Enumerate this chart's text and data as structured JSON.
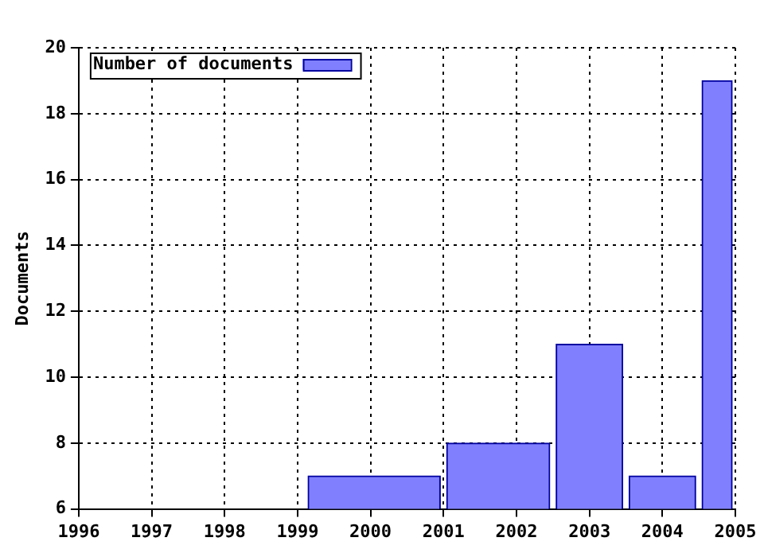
{
  "chart_data": {
    "type": "histogram",
    "ylabel": "Documents",
    "bins": [
      1999.1,
      2001.0,
      2002.5,
      2003.5,
      2004.5,
      2005
    ],
    "series": [
      {
        "name": "Number of documents",
        "color": "#8080ff",
        "values": [
          7,
          8,
          11,
          7,
          19
        ]
      }
    ],
    "xlim": [
      1996,
      2005
    ],
    "xticks": [
      1996,
      1997,
      1998,
      1999,
      2000,
      2001,
      2002,
      2003,
      2004,
      2005
    ],
    "ylim": [
      6,
      20
    ],
    "yticks": [
      6,
      8,
      10,
      12,
      14,
      16,
      18,
      20
    ],
    "grid": true,
    "legend": "top left"
  }
}
